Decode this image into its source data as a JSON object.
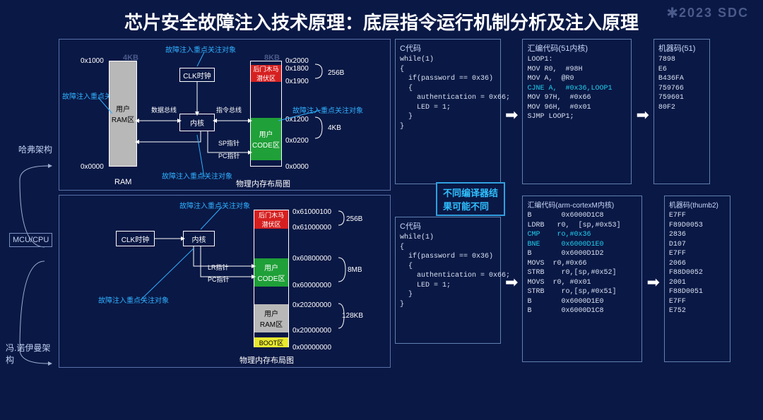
{
  "meta": {
    "watermark": "2023 SDC"
  },
  "title": "芯片安全故障注入技术原理：底层指令运行机制分析及注入原理",
  "tree": {
    "root": "MCU/CPU",
    "arch1": "哈弗架构",
    "arch2": "冯.诺伊曼架构"
  },
  "diag1": {
    "ann_top": "故障注入重点关注对象",
    "ann_left": "故障注入重点关注对象",
    "ann_right": "故障注入重点关注对象",
    "ann_bottom": "故障注入重点关注对象",
    "ram_size": "4KB",
    "code_size": "8KB",
    "addr_ram_top": "0x1000",
    "addr_ram_bot": "0x0000",
    "addr_c_top": "0x2000",
    "addr_c_1": "0x1800",
    "addr_c_2": "0x1900",
    "addr_c_3": "0x1200",
    "addr_c_4": "0x0200",
    "addr_c_bot": "0x0000",
    "brace1": "256B",
    "brace2": "4KB",
    "user_ram": "用户\nRAM区",
    "trojan": "后门木马\n潜伏区",
    "user_code": "用户\nCODE区",
    "clk": "CLK时钟",
    "core": "内核",
    "data_bus": "数据总线",
    "inst_bus": "指令总线",
    "sp": "SP指针",
    "pc": "PC指针",
    "cap_ram": "RAM",
    "cap_phys": "物理内存布局图"
  },
  "diag2": {
    "ann_top": "故障注入重点关注对象",
    "ann_left": "故障注入重点关注对象",
    "clk": "CLK时钟",
    "core": "内核",
    "lr": "LR指针",
    "pc": "PC指针",
    "trojan": "后门木马\n潜伏区",
    "user_code": "用户\nCODE区",
    "user_ram": "用户\nRAM区",
    "boot": "BOOT区",
    "a0": "0x61000100",
    "a1": "0x61000000",
    "a2": "0x60800000",
    "a3": "0x60000000",
    "a4": "0x20200000",
    "a5": "0x20000000",
    "a6": "0x00000000",
    "b1": "256B",
    "b2": "8MB",
    "b3": "128KB",
    "cap": "物理内存布局图"
  },
  "note": "不同编译器结\n果可能不同",
  "c1": {
    "title": "C代码",
    "lines": [
      "while(1)",
      "{",
      "  if(password == 0x36)",
      "  {",
      "    authentication = 0x66;",
      "    LED = 1;",
      "  }",
      "}"
    ]
  },
  "asm1": {
    "title": "汇编代码(51内核)",
    "lines": [
      "LOOP1:",
      "MOV R0,  #98H",
      "MOV A,  @R0",
      "CJNE A,  #0x36,LOOP1",
      "MOV 97H,  #0x66",
      "MOV 96H,  #0x01",
      "SJMP LOOP1;"
    ],
    "hl": 3
  },
  "mc1": {
    "title": "机器码(51)",
    "lines": [
      "7898",
      "E6",
      "B436FA",
      "759766",
      "759601",
      "80F2"
    ]
  },
  "c2": {
    "title": "C代码",
    "lines": [
      "while(1)",
      "{",
      "  if(password == 0x36)",
      "  {",
      "    authentication = 0x66;",
      "    LED = 1;",
      "  }",
      "}"
    ]
  },
  "asm2": {
    "title": "汇编代码(arm-cortexM内核)",
    "lines": [
      "B       0x6000D1C8",
      "LDRB   r0,  [sp,#0x53]",
      "CMP    ro,#0x36",
      "BNE     0x6000D1E0",
      "B       0x6000D1D2",
      "MOVS  r0,#0x66",
      "STRB    r0,[sp,#0x52]",
      "MOVS  r0, #0x01",
      "STRB    ro,[sp,#0x51]",
      "B       0x6000D1E0",
      "B       0x6000D1C8"
    ],
    "hl": [
      2,
      3
    ]
  },
  "mc2": {
    "title": "机器码(thumb2)",
    "lines": [
      "E7FF",
      "F89D0053",
      "2836",
      "D107",
      "E7FF",
      "2066",
      "F88D0052",
      "2001",
      "F88D0051",
      "E7FF",
      "E752"
    ]
  },
  "colors": {
    "bg": "#0a1845",
    "border": "#6080b0",
    "annot": "#30b0ff",
    "ram": "#b8b8b8",
    "code": "#1fa038",
    "trojan": "#d62020",
    "boot": "#e8e830",
    "hl": "#20d0f0"
  }
}
